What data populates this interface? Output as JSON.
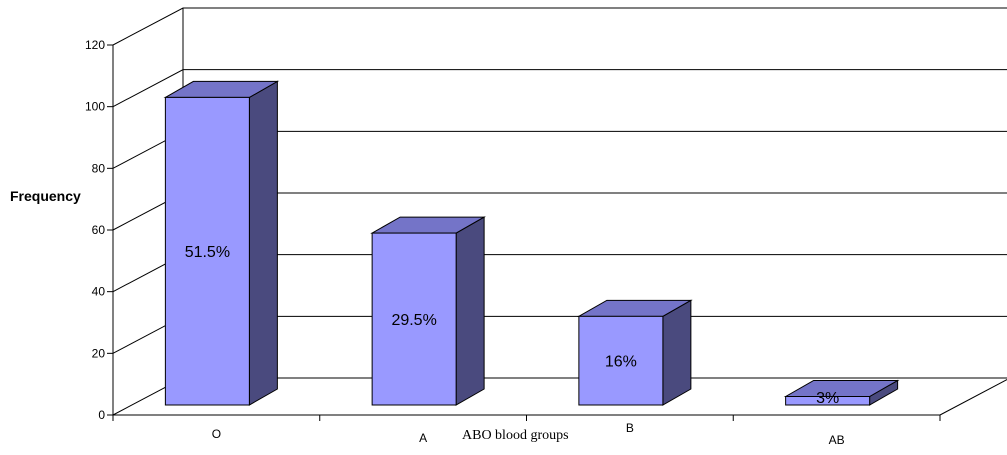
{
  "chart_data": {
    "type": "bar",
    "title": "",
    "xlabel": "ABO blood groups",
    "ylabel": "Frequency",
    "ylim": [
      0,
      120
    ],
    "yticks": [
      0,
      20,
      40,
      60,
      80,
      100,
      120
    ],
    "categories": [
      "O",
      "A",
      "B",
      "AB"
    ],
    "values": [
      103,
      59,
      32,
      6
    ],
    "data_labels": [
      "51.5%",
      "29.5%",
      "16%",
      "3%"
    ],
    "grid": true,
    "legend": "none",
    "style": "3d",
    "colors": {
      "front": "#9999ff",
      "side": "#4a4a7e",
      "top": "#7474c8",
      "grid": "#000000"
    }
  }
}
